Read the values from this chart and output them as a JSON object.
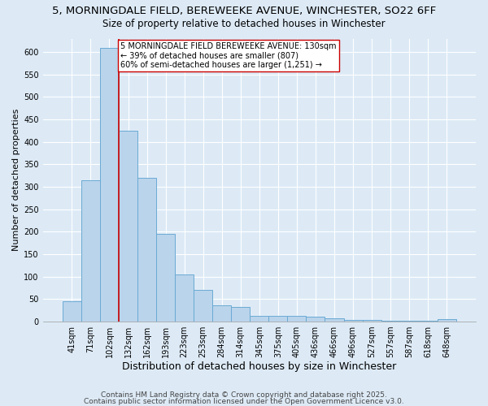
{
  "title1": "5, MORNINGDALE FIELD, BEREWEEKE AVENUE, WINCHESTER, SO22 6FF",
  "title2": "Size of property relative to detached houses in Winchester",
  "xlabel": "Distribution of detached houses by size in Winchester",
  "ylabel": "Number of detached properties",
  "categories": [
    "41sqm",
    "71sqm",
    "102sqm",
    "132sqm",
    "162sqm",
    "193sqm",
    "223sqm",
    "253sqm",
    "284sqm",
    "314sqm",
    "345sqm",
    "375sqm",
    "405sqm",
    "436sqm",
    "466sqm",
    "496sqm",
    "527sqm",
    "557sqm",
    "587sqm",
    "618sqm",
    "648sqm"
  ],
  "values": [
    45,
    315,
    610,
    425,
    320,
    195,
    105,
    70,
    37,
    33,
    13,
    13,
    13,
    10,
    7,
    4,
    4,
    2,
    2,
    1,
    5
  ],
  "bar_color": "#bad4eb",
  "bar_edge_color": "#6aaad4",
  "vline_color": "#cc0000",
  "vline_x": 2.5,
  "annotation_box_facecolor": "#ffffff",
  "annotation_border_color": "#cc0000",
  "annotation_lines": [
    "5 MORNINGDALE FIELD BEREWEEKE AVENUE: 130sqm",
    "← 39% of detached houses are smaller (807)",
    "60% of semi-detached houses are larger (1,251) →"
  ],
  "ylim": [
    0,
    630
  ],
  "yticks": [
    0,
    50,
    100,
    150,
    200,
    250,
    300,
    350,
    400,
    450,
    500,
    550,
    600
  ],
  "bg_color": "#ddeaf6",
  "plot_bg_color": "#ddeaf6",
  "title1_fontsize": 9.5,
  "title2_fontsize": 8.5,
  "xlabel_fontsize": 9,
  "ylabel_fontsize": 8,
  "tick_fontsize": 7,
  "annot_fontsize": 7,
  "footnote1": "Contains HM Land Registry data © Crown copyright and database right 2025.",
  "footnote2": "Contains public sector information licensed under the Open Government Licence v3.0.",
  "footnote_fontsize": 6.5
}
